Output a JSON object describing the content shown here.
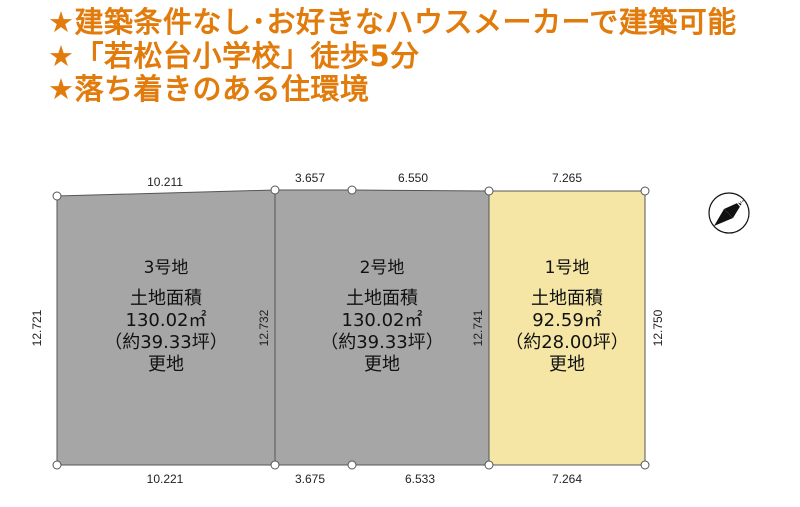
{
  "headlines": [
    "★建築条件なし･お好きなハウスメーカーで建築可能",
    "★「若松台小学校」徒歩5分",
    "★落ち着きのある住環境"
  ],
  "colors": {
    "headline": "#e07b0c",
    "lot_gray": "#a6a6a6",
    "lot_yellow": "#f5e6a6",
    "outline": "#555555"
  },
  "compass": {
    "label": "N"
  },
  "lots": [
    {
      "name": "3号地",
      "area_label": "土地面積",
      "area": "130.02㎡",
      "tsubo": "（約39.33坪）",
      "status": "更地"
    },
    {
      "name": "2号地",
      "area_label": "土地面積",
      "area": "130.02㎡",
      "tsubo": "（約39.33坪）",
      "status": "更地"
    },
    {
      "name": "1号地",
      "area_label": "土地面積",
      "area": "92.59㎡",
      "tsubo": "（約28.00坪）",
      "status": "更地"
    }
  ],
  "dimensions": {
    "top": [
      "10.211",
      "3.657",
      "6.550",
      "7.265"
    ],
    "bottom": [
      "10.221",
      "3.675",
      "6.533",
      "7.264"
    ],
    "sides": [
      "12.721",
      "12.732",
      "12.741",
      "12.750"
    ]
  }
}
